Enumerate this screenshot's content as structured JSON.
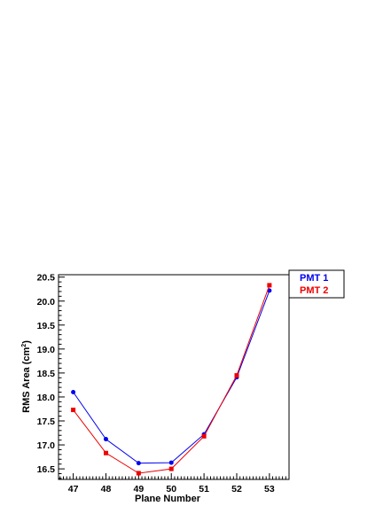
{
  "chart_data": {
    "type": "line",
    "xlabel": "Plane Number",
    "ylabel_main": "RMS Area (cm",
    "ylabel_sup": "2",
    "ylabel_close": ")",
    "xlim": [
      46.55,
      53.6
    ],
    "ylim": [
      16.28,
      20.55
    ],
    "x_ticks": [
      47,
      48,
      49,
      50,
      51,
      52,
      53
    ],
    "y_ticks": [
      16.5,
      17.0,
      17.5,
      18.0,
      18.5,
      19.0,
      19.5,
      20.0,
      20.5
    ],
    "y_tick_labels": [
      "16.5",
      "17.0",
      "17.5",
      "18.0",
      "18.5",
      "19.0",
      "19.5",
      "20.0",
      "20.5"
    ],
    "series": [
      {
        "name": "PMT 1",
        "color": "#0000ee",
        "marker": "circle",
        "x": [
          47,
          48,
          49,
          50,
          51,
          52,
          53
        ],
        "y": [
          18.1,
          17.12,
          16.62,
          16.63,
          17.22,
          18.41,
          20.22
        ]
      },
      {
        "name": "PMT 2",
        "color": "#ee0000",
        "marker": "square",
        "x": [
          47,
          48,
          49,
          50,
          51,
          52,
          53
        ],
        "y": [
          17.73,
          16.83,
          16.41,
          16.5,
          17.18,
          18.45,
          20.33
        ]
      }
    ],
    "legend_position": "top-right"
  }
}
